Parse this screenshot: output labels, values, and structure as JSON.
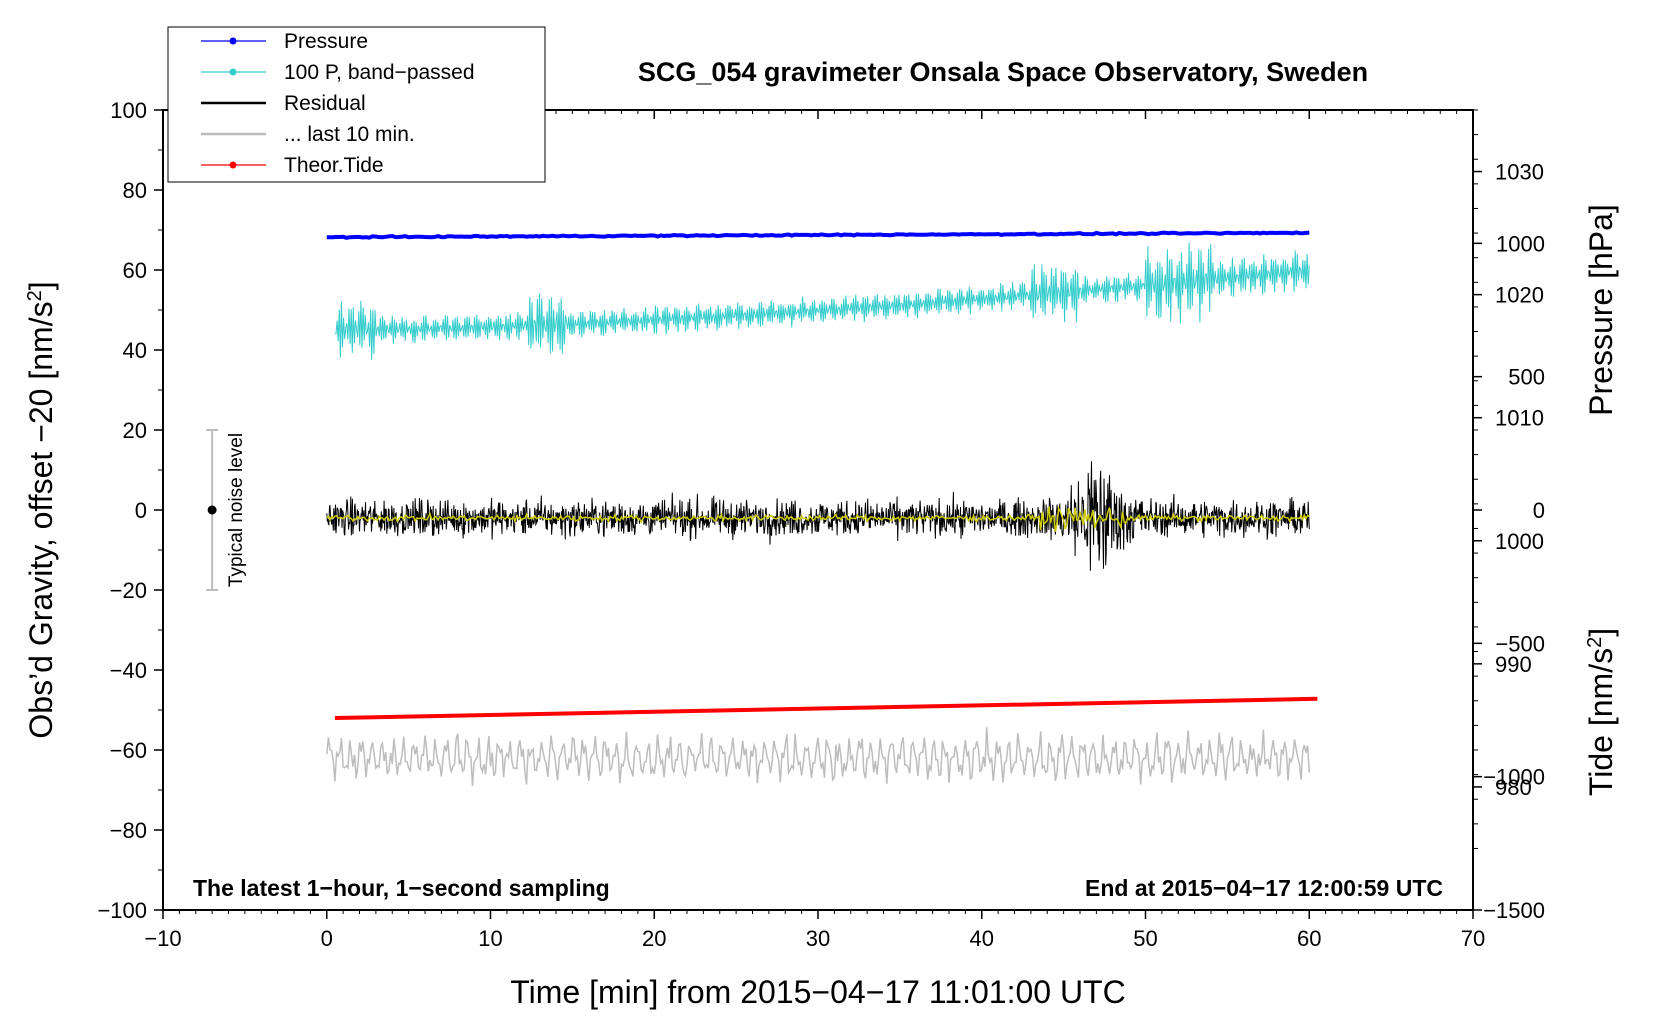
{
  "chart_data": {
    "type": "line",
    "title": "SCG_054 gravimeter Onsala Space Observatory, Sweden",
    "xlabel": "Time [min] from 2015−04−17 11:01:00 UTC",
    "ylabel_main": "Obs’d Gravity, offset −20 [nm/s",
    "ylabel_main_sup": "2",
    "ylabel_main_end": "]",
    "ylabel_pressure": "Pressure [hPa]",
    "ylabel_tide": "Tide [nm/s",
    "ylabel_tide_sup": "2",
    "ylabel_tide_end": "]",
    "xlim": [
      -10,
      70
    ],
    "ylim": [
      -100,
      100
    ],
    "pressure_ylim": [
      970,
      1035
    ],
    "tide_ylim": [
      -1500,
      1500
    ],
    "x_ticks": [
      "−10",
      "0",
      "10",
      "20",
      "30",
      "40",
      "50",
      "60",
      "70"
    ],
    "x_tick_values": [
      -10,
      0,
      10,
      20,
      30,
      40,
      50,
      60,
      70
    ],
    "y_ticks": [
      "100",
      "80",
      "60",
      "40",
      "20",
      "0",
      "−20",
      "−40",
      "−60",
      "−80",
      "−100"
    ],
    "y_tick_values": [
      100,
      80,
      60,
      40,
      20,
      0,
      -20,
      -40,
      -60,
      -80,
      -100
    ],
    "pressure_ticks": [
      "1030",
      "1020",
      "1010",
      "1000",
      "990",
      "980"
    ],
    "pressure_tick_values": [
      1030,
      1020,
      1010,
      1000,
      990,
      980
    ],
    "tide_ticks": [
      "1000",
      "500",
      "0",
      "−500",
      "−1000",
      "−1500"
    ],
    "tide_tick_values": [
      1000,
      500,
      0,
      -500,
      -1000,
      -1500
    ],
    "legend": [
      {
        "label": "Pressure",
        "color": "#0000ff",
        "marker": true
      },
      {
        "label": "100 P, band−passed",
        "color": "#33cccc",
        "marker": true
      },
      {
        "label": "Residual",
        "color": "#000000",
        "marker": false
      },
      {
        "label": "... last 10 min.",
        "color": "#bdbdbd",
        "marker": false
      },
      {
        "label": "Theor.Tide",
        "color": "#ff0000",
        "marker": true
      }
    ],
    "legend_position": "top-left",
    "annotations": {
      "bottom_left": "The latest 1−hour, 1−second sampling",
      "bottom_right": "End at 2015−04−17 12:00:59 UTC",
      "noise_label": "Typical noise level"
    },
    "noise_bar": {
      "x": -7,
      "center": 0,
      "low": -20,
      "high": 20
    },
    "series": [
      {
        "name": "Pressure",
        "color": "#0000ff",
        "axis": "main",
        "x_range": [
          0,
          60
        ],
        "y_start": 68.2,
        "y_end": 69.3
      },
      {
        "name": "100 P, band−passed",
        "color": "#33cccc",
        "axis": "main",
        "x_range": [
          0.5,
          60
        ],
        "y_start": 45,
        "y_end": 60
      },
      {
        "name": "Residual",
        "color": "#000000",
        "axis": "main",
        "x_range": [
          0,
          60
        ],
        "y_start": -2,
        "y_end": -2
      },
      {
        "name": "... last 10 min.",
        "color": "#bdbdbd",
        "axis": "main",
        "x_range": [
          0,
          60
        ],
        "y_start": -62,
        "y_end": -62
      },
      {
        "name": "Theor.Tide",
        "color": "#ff0000",
        "axis": "main",
        "x_range": [
          0.5,
          60.5
        ],
        "y_start": -52,
        "y_end": -47.2
      }
    ],
    "smoothed_residual_color": "#cccc00"
  }
}
